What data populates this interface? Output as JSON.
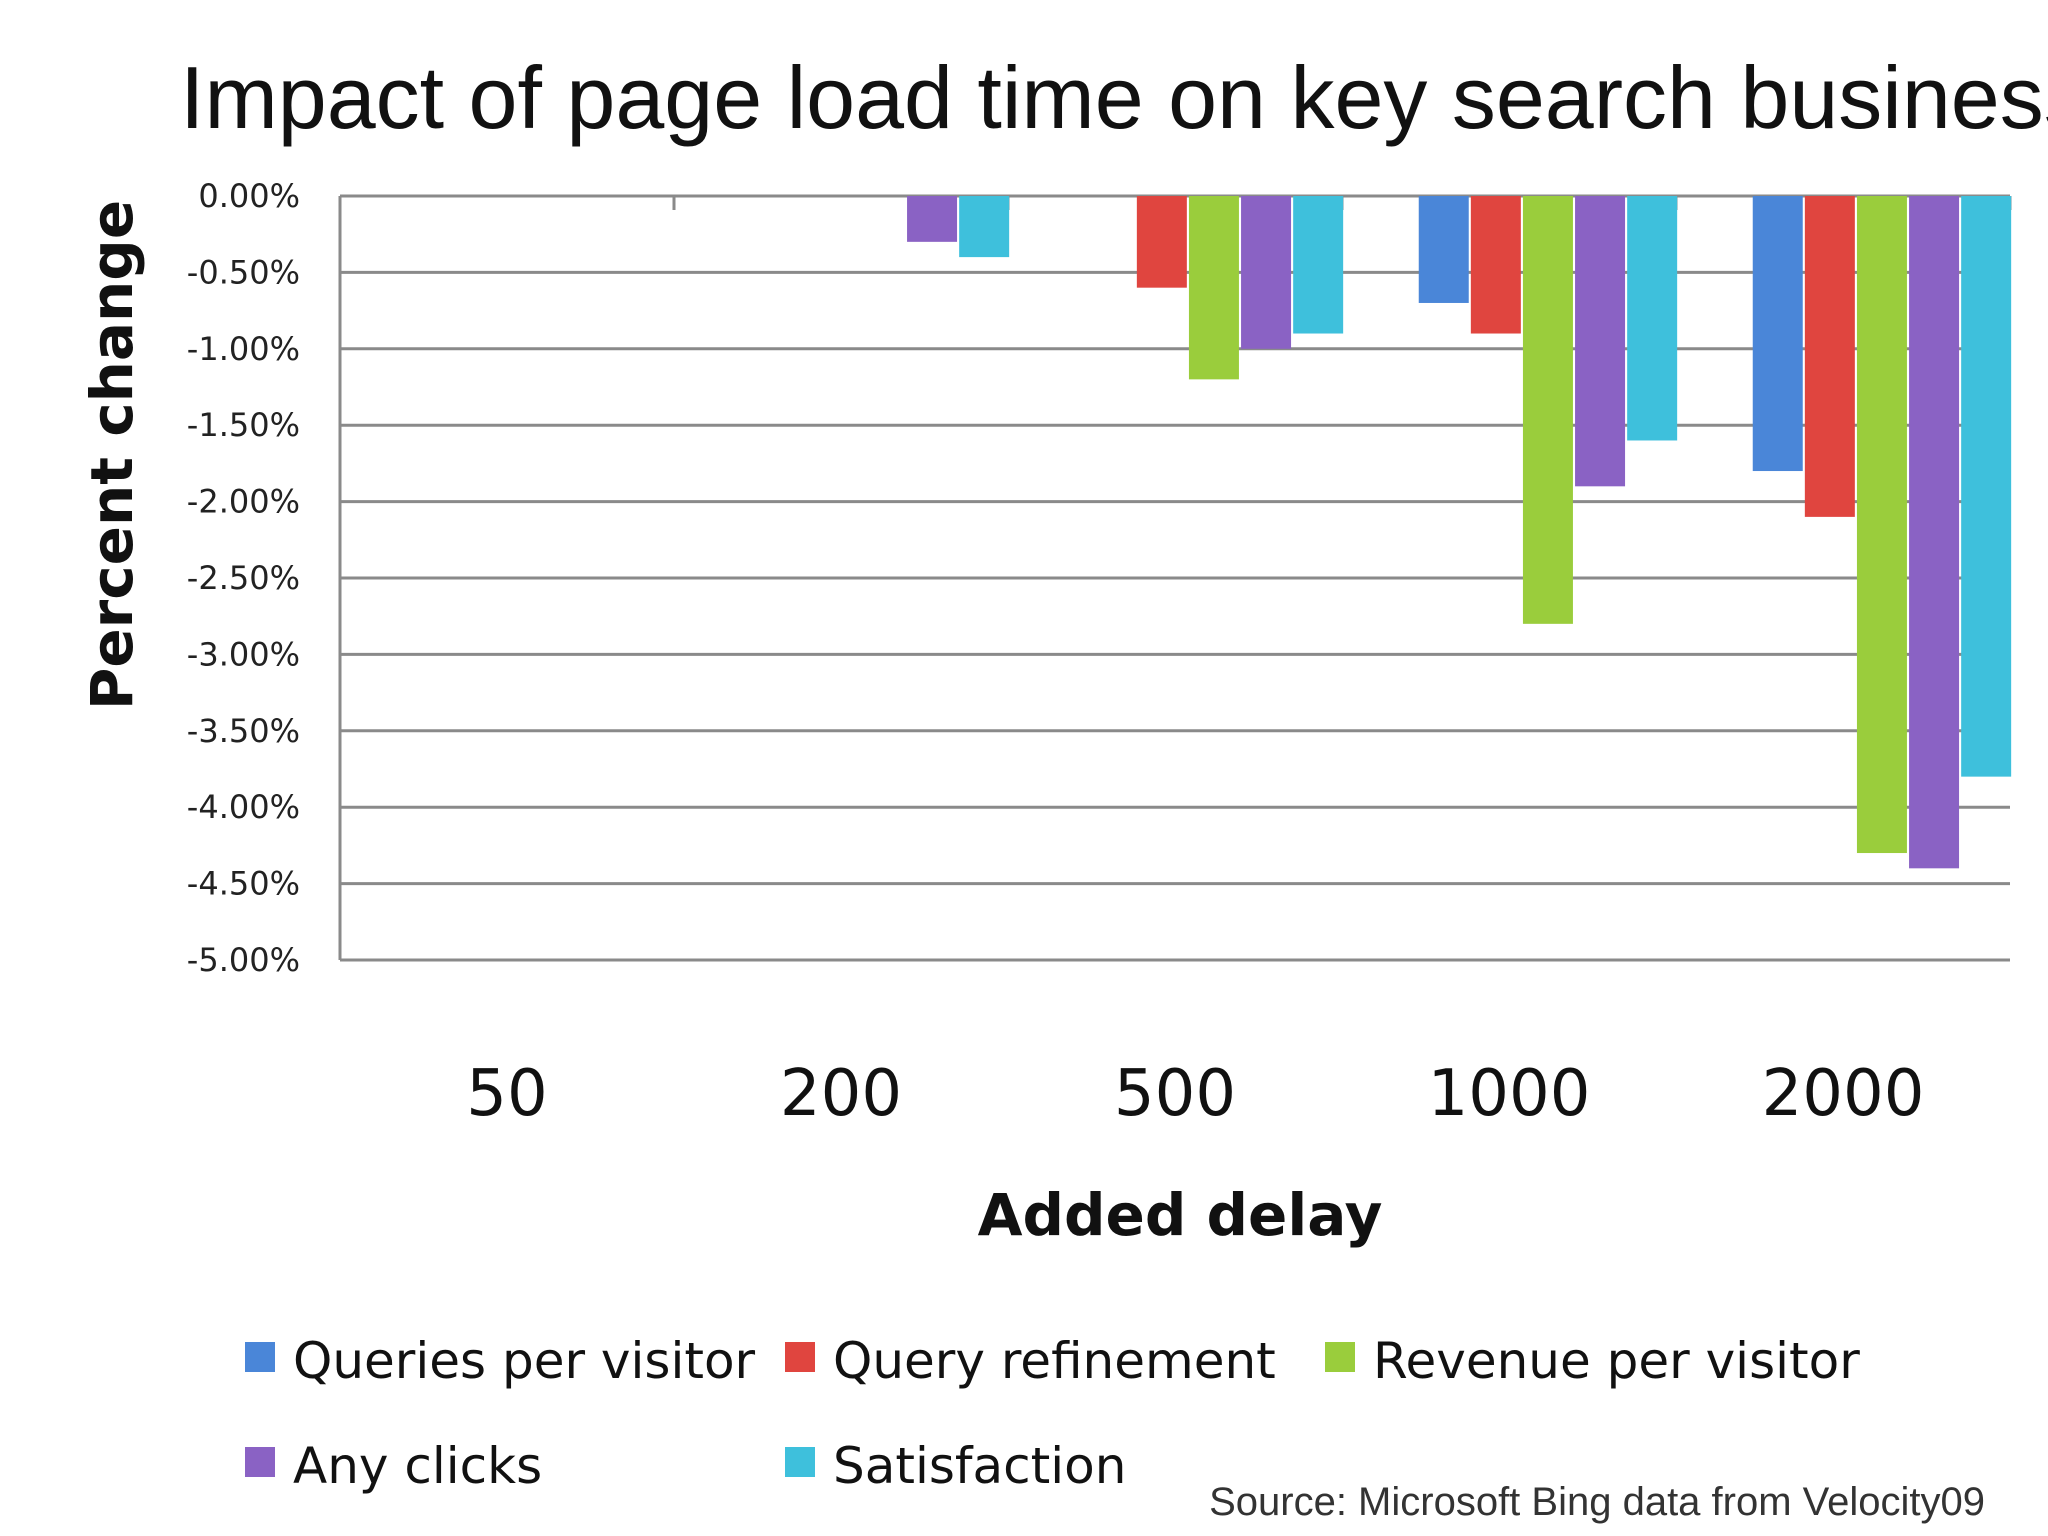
{
  "chart_data": {
    "type": "bar",
    "title": "Impact of page load time on key search business indicators",
    "xlabel": "Added delay",
    "ylabel": "Percent change",
    "ylim": [
      -5.0,
      0.0
    ],
    "yticks": [
      "0.00%",
      "-0.50%",
      "-1.00%",
      "-1.50%",
      "-2.00%",
      "-2.50%",
      "-3.00%",
      "-3.50%",
      "-4.00%",
      "-4.50%",
      "-5.00%"
    ],
    "categories": [
      "50",
      "200",
      "500",
      "1000",
      "2000"
    ],
    "series": [
      {
        "name": "Queries per visitor",
        "color": "#4a86d8",
        "values": [
          0,
          0,
          0,
          -0.7,
          -1.8
        ]
      },
      {
        "name": "Query refinement",
        "color": "#e0453f",
        "values": [
          0,
          0,
          -0.6,
          -0.9,
          -2.1
        ]
      },
      {
        "name": "Revenue per visitor",
        "color": "#9acd3c",
        "values": [
          0,
          0,
          -1.2,
          -2.8,
          -4.3
        ]
      },
      {
        "name": "Any clicks",
        "color": "#8a62c4",
        "values": [
          0,
          -0.3,
          -1.0,
          -1.9,
          -4.4
        ]
      },
      {
        "name": "Satisfaction",
        "color": "#3ec0dc",
        "values": [
          0,
          -0.4,
          -0.9,
          -1.6,
          -3.8
        ]
      }
    ],
    "grid": true,
    "legend": "bottom",
    "source": "Source: Microsoft Bing data from Velocity09"
  }
}
